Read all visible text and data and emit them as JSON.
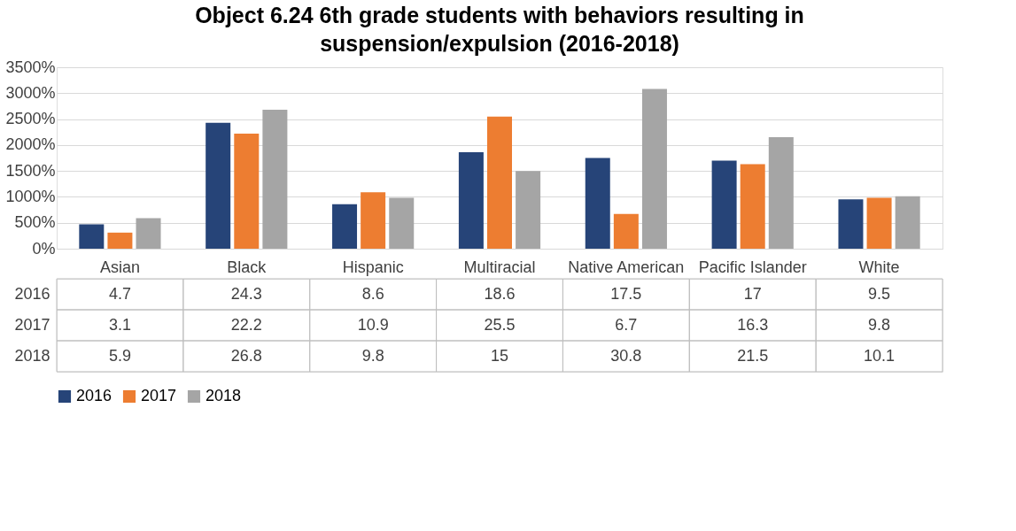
{
  "chart_data": {
    "type": "bar",
    "title": "Object 6.24 6th grade students with behaviors resulting in suspension/expulsion (2016-2018)",
    "categories": [
      "Asian",
      "Black",
      "Hispanic",
      "Multiracial",
      "Native American",
      "Pacific Islander",
      "White"
    ],
    "series": [
      {
        "name": "2016",
        "color": "#264478",
        "values": [
          4.7,
          24.3,
          8.6,
          18.6,
          17.5,
          17,
          9.5
        ],
        "value_labels": [
          "4.7",
          "24.3",
          "8.6",
          "18.6",
          "17.5",
          "17",
          "9.5"
        ]
      },
      {
        "name": "2017",
        "color": "#ed7d31",
        "values": [
          3.1,
          22.2,
          10.9,
          25.5,
          6.7,
          16.3,
          9.8
        ],
        "value_labels": [
          "3.1",
          "22.2",
          "10.9",
          "25.5",
          "6.7",
          "16.3",
          "9.8"
        ]
      },
      {
        "name": "2018",
        "color": "#a5a5a5",
        "values": [
          5.9,
          26.8,
          9.8,
          15,
          30.8,
          21.5,
          10.1
        ],
        "value_labels": [
          "5.9",
          "26.8",
          "9.8",
          "15",
          "30.8",
          "21.5",
          "10.1"
        ]
      }
    ],
    "ylim": [
      0,
      35
    ],
    "yticks": [
      {
        "value": 0,
        "label": "0%"
      },
      {
        "value": 5,
        "label": "500%"
      },
      {
        "value": 10,
        "label": "1000%"
      },
      {
        "value": 15,
        "label": "1500%"
      },
      {
        "value": 20,
        "label": "2000%"
      },
      {
        "value": 25,
        "label": "2500%"
      },
      {
        "value": 30,
        "label": "3000%"
      },
      {
        "value": 35,
        "label": "3500%"
      }
    ],
    "grid": "y",
    "legend": "bottom"
  }
}
